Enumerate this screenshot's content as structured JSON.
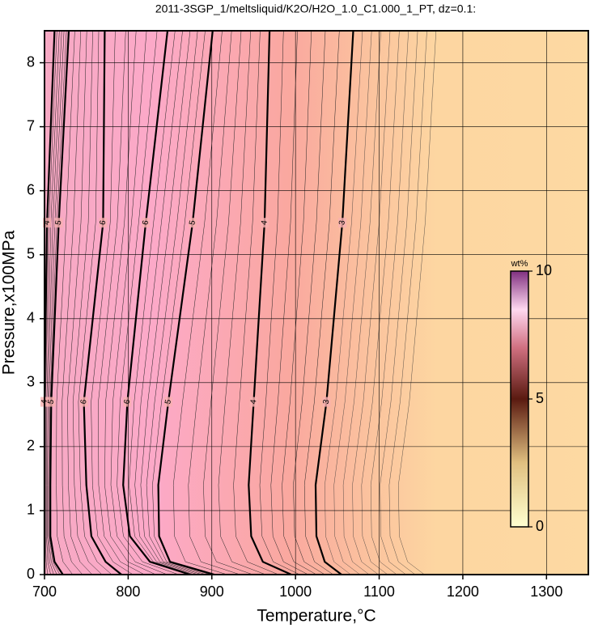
{
  "chart_data": {
    "type": "contour",
    "title": "2011-3SGP_1/meltsliquid/K2O/H2O_1.0_C1.000_1_PT, dz=0.1:",
    "x_label": "Temperature,°C",
    "y_label": "Pressure,x100MPa",
    "xlim": [
      700,
      1350
    ],
    "xticks": [
      700,
      800,
      900,
      1000,
      1100,
      1200,
      1300
    ],
    "ylim": [
      0,
      8.5
    ],
    "yticks": [
      0,
      1,
      2,
      3,
      4,
      5,
      6,
      7,
      8
    ],
    "grid": true,
    "pressure": [
      8.5,
      5.5,
      2.7,
      1.4,
      0.6,
      0.2,
      0
    ],
    "contours": [
      {
        "level": 4,
        "temperature": [
          712,
          703,
          700,
          700,
          700,
          700,
          700
        ]
      },
      {
        "level": 5,
        "temperature": [
          729,
          717,
          708,
          707,
          707,
          712,
          722
        ]
      },
      {
        "level": 6,
        "temperature": [
          772,
          770,
          747,
          750,
          756,
          773,
          792
        ]
      },
      {
        "level": 6,
        "temperature": [
          847,
          821,
          799,
          794,
          802,
          826,
          874
        ]
      },
      {
        "level": 5,
        "temperature": [
          901,
          877,
          848,
          836,
          837,
          850,
          903
        ]
      },
      {
        "level": 4,
        "temperature": [
          969,
          963,
          950,
          944,
          947,
          961,
          995
        ]
      },
      {
        "level": 3,
        "temperature": [
          1069,
          1056,
          1037,
          1024,
          1025,
          1035,
          1055
        ]
      }
    ],
    "colorbar": {
      "label": "wt%",
      "lim": [
        0,
        10
      ],
      "ticks": [
        0,
        5,
        10
      ]
    }
  }
}
